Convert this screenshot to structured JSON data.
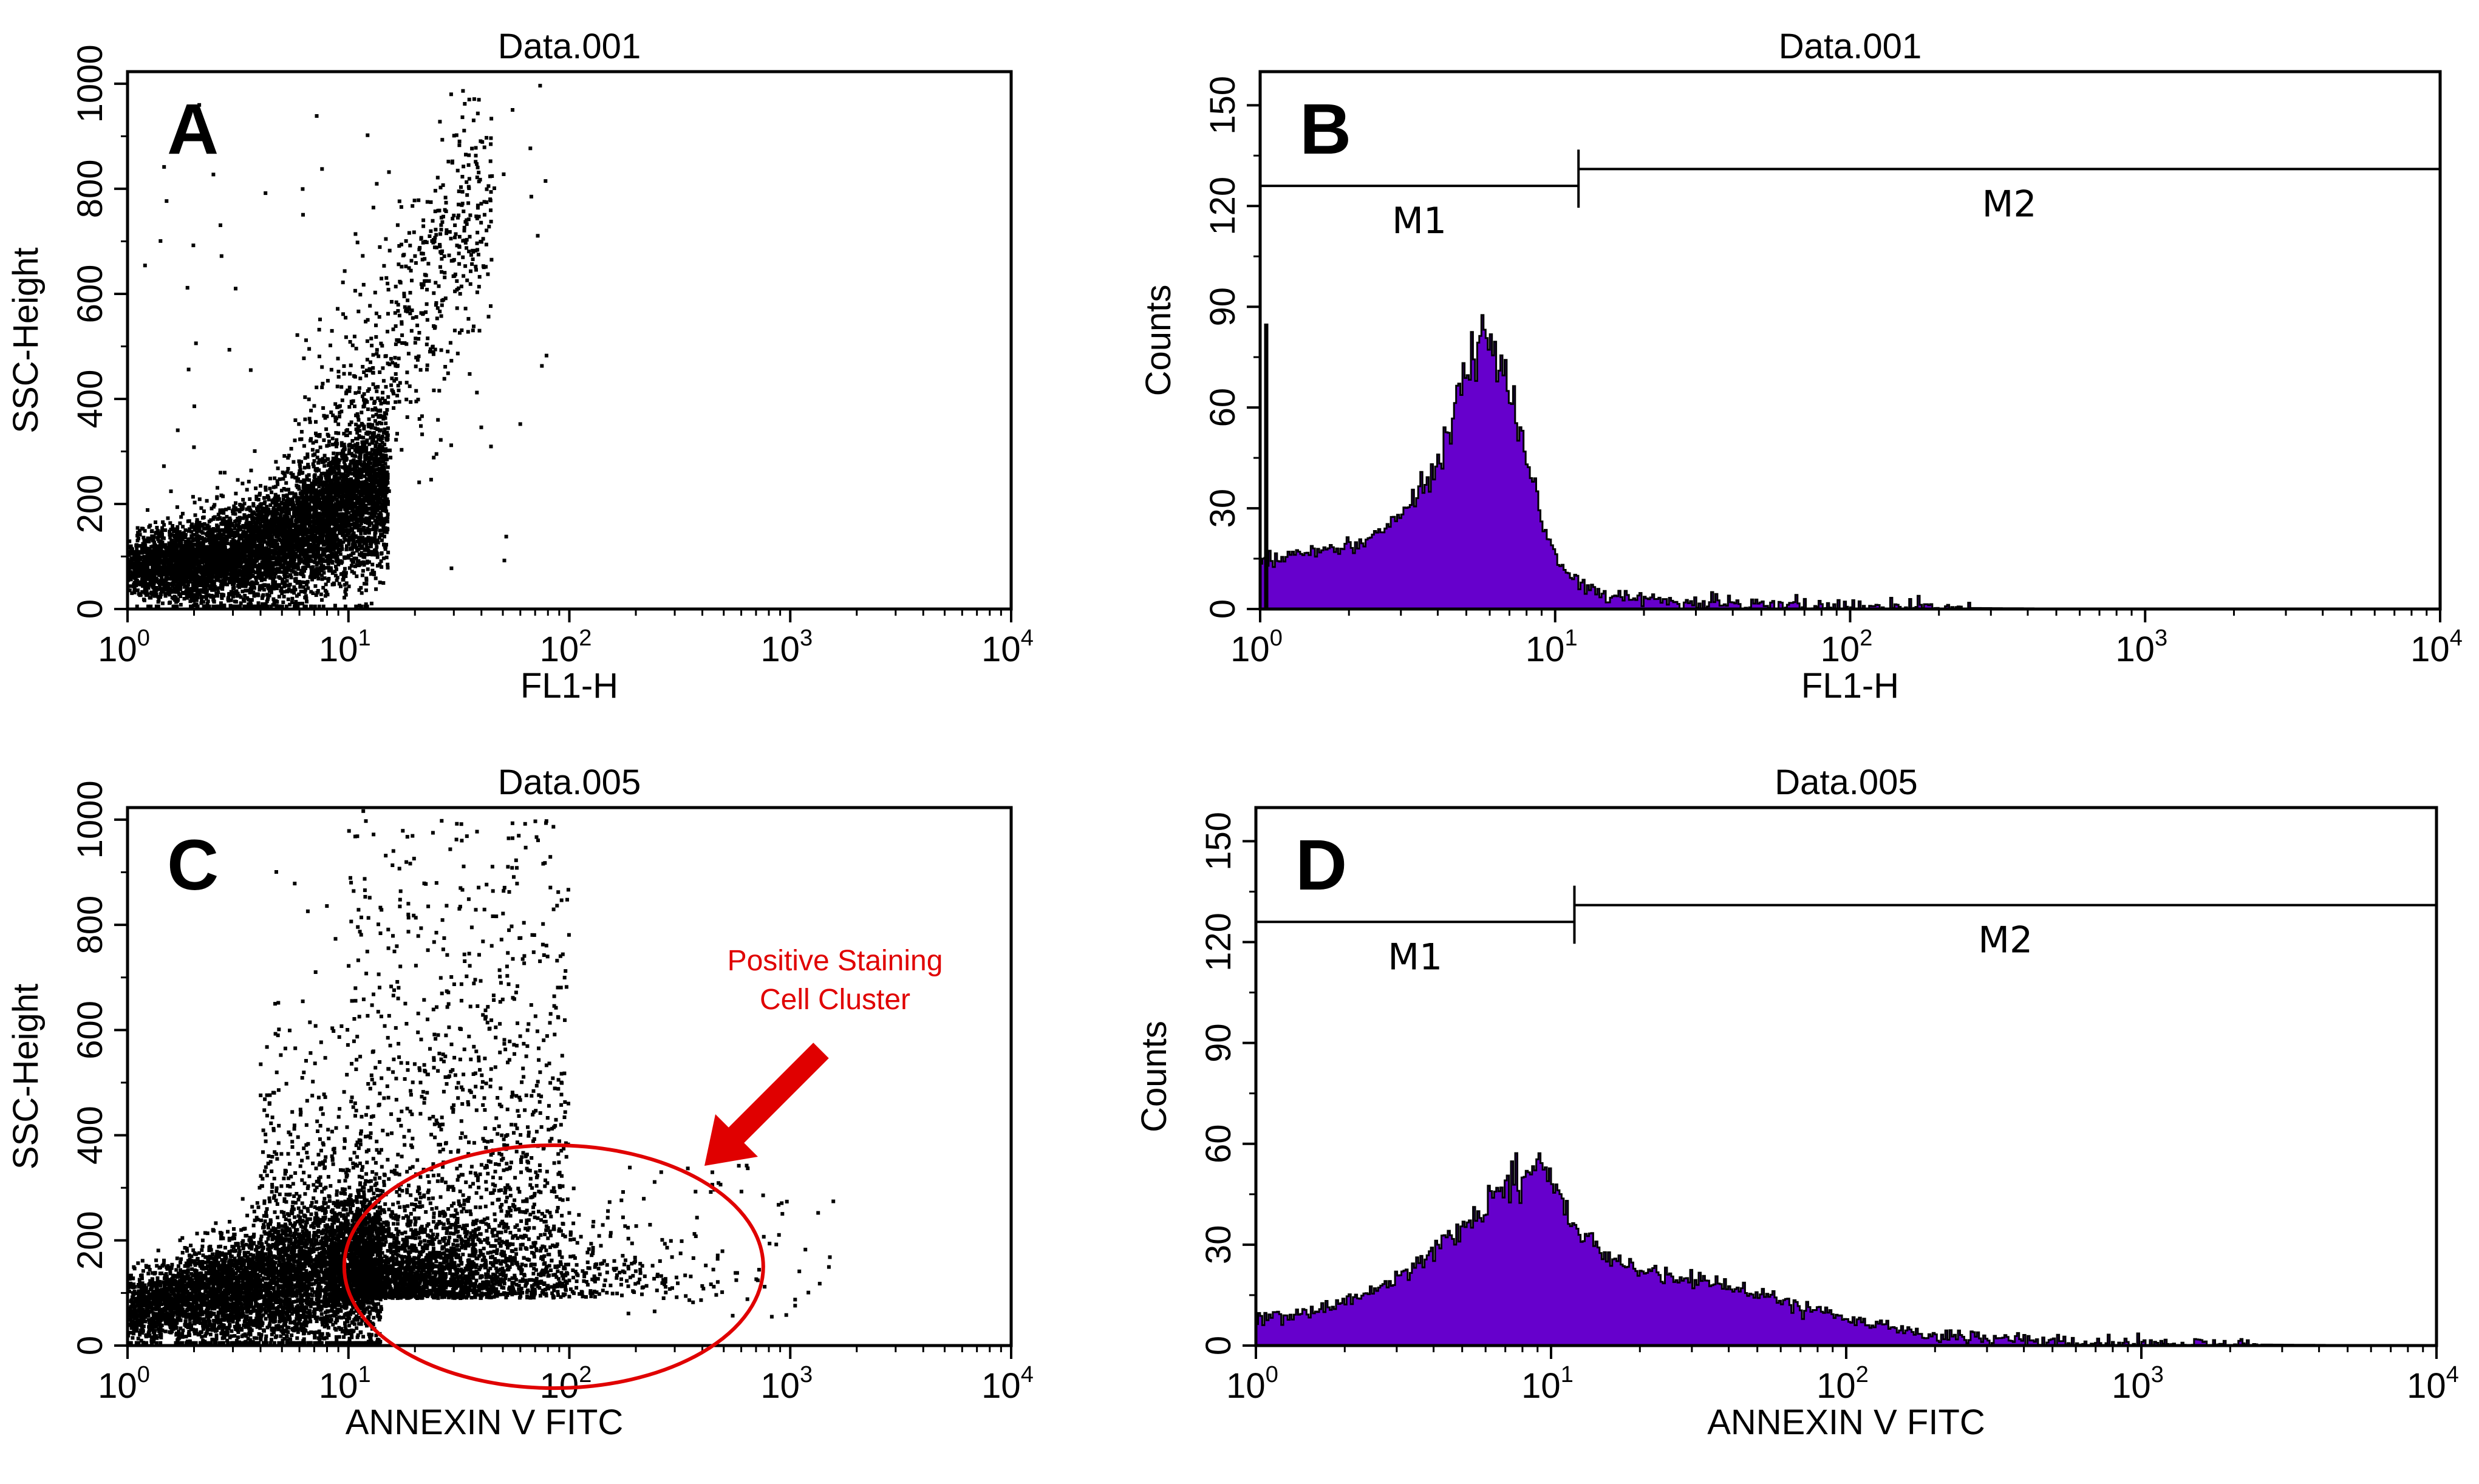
{
  "figure": {
    "colors": {
      "dot": "#000000",
      "histogram_fill": "#6600cc",
      "histogram_outline": "#000000",
      "annotation": "#e00000"
    }
  },
  "chart_data": [
    {
      "panel": "A",
      "type": "scatter",
      "title": "Data.001",
      "xlabel": "FL1-H",
      "ylabel": "SSC-Height",
      "xscale": "log",
      "xlim": [
        1,
        10000
      ],
      "ylim": [
        0,
        1023
      ],
      "x_ticks": [
        {
          "base": "10",
          "exp": "0"
        },
        {
          "base": "10",
          "exp": "1"
        },
        {
          "base": "10",
          "exp": "2"
        },
        {
          "base": "10",
          "exp": "3"
        },
        {
          "base": "10",
          "exp": "4"
        }
      ],
      "y_ticks": [
        "0",
        "200",
        "400",
        "600",
        "800",
        "1000"
      ],
      "population": {
        "description": "dense cluster near origin",
        "x_range": [
          1,
          30
        ],
        "y_center": 100,
        "outliers_to": [
          60,
          1000
        ]
      }
    },
    {
      "panel": "B",
      "type": "area",
      "title": "Data.001",
      "xlabel": "FL1-H",
      "ylabel": "Counts",
      "xscale": "log",
      "xlim": [
        1,
        10000
      ],
      "ylim": [
        0,
        160
      ],
      "x_ticks": [
        {
          "base": "10",
          "exp": "0"
        },
        {
          "base": "10",
          "exp": "1"
        },
        {
          "base": "10",
          "exp": "2"
        },
        {
          "base": "10",
          "exp": "3"
        },
        {
          "base": "10",
          "exp": "4"
        }
      ],
      "y_ticks": [
        "0",
        "30",
        "60",
        "90",
        "120",
        "150"
      ],
      "series": [
        {
          "name": "FL1-H histogram",
          "x": [
            1,
            1.5,
            2,
            2.5,
            3,
            4,
            5,
            5.8,
            7,
            8,
            10,
            12,
            15,
            20,
            30,
            50,
            100,
            1000,
            10000
          ],
          "values": [
            15,
            17,
            19,
            23,
            28,
            45,
            70,
            80,
            65,
            40,
            15,
            7,
            4,
            3,
            2,
            1,
            0.5,
            0,
            0
          ]
        }
      ],
      "markers": [
        {
          "label": "M1",
          "from": 1,
          "to": 12
        },
        {
          "label": "M2",
          "from": 12,
          "to": 10000
        }
      ]
    },
    {
      "panel": "C",
      "type": "scatter",
      "title": "Data.005",
      "xlabel": "ANNEXIN V FITC",
      "ylabel": "SSC-Height",
      "xscale": "log",
      "xlim": [
        1,
        10000
      ],
      "ylim": [
        0,
        1023
      ],
      "x_ticks": [
        {
          "base": "10",
          "exp": "0"
        },
        {
          "base": "10",
          "exp": "1"
        },
        {
          "base": "10",
          "exp": "2"
        },
        {
          "base": "10",
          "exp": "3"
        },
        {
          "base": "10",
          "exp": "4"
        }
      ],
      "y_ticks": [
        "0",
        "200",
        "400",
        "600",
        "800",
        "1000"
      ],
      "population": {
        "description": "main cluster with tail to higher fluorescence",
        "x_range": [
          1,
          1500
        ],
        "y_center": 100,
        "outliers_to": [
          300,
          1000
        ]
      },
      "annotation": {
        "text_lines": [
          "Positive Staining",
          "Cell Cluster"
        ],
        "ellipse_center": [
          85,
          150
        ]
      }
    },
    {
      "panel": "D",
      "type": "area",
      "title": "Data.005",
      "xlabel": "ANNEXIN V FITC",
      "ylabel": "Counts",
      "xscale": "log",
      "xlim": [
        1,
        10000
      ],
      "ylim": [
        0,
        160
      ],
      "x_ticks": [
        {
          "base": "10",
          "exp": "0"
        },
        {
          "base": "10",
          "exp": "1"
        },
        {
          "base": "10",
          "exp": "2"
        },
        {
          "base": "10",
          "exp": "3"
        },
        {
          "base": "10",
          "exp": "4"
        }
      ],
      "y_ticks": [
        "0",
        "30",
        "60",
        "90",
        "120",
        "150"
      ],
      "series": [
        {
          "name": "ANNEXIN V FITC histogram",
          "x": [
            1,
            1.5,
            2,
            3,
            4,
            5,
            6,
            8,
            9,
            10,
            12,
            15,
            20,
            30,
            50,
            100,
            200,
            500,
            1000,
            10000
          ],
          "values": [
            8,
            10,
            13,
            20,
            28,
            35,
            42,
            52,
            55,
            50,
            35,
            27,
            22,
            20,
            15,
            8,
            3,
            1,
            0.5,
            0
          ]
        }
      ],
      "markers": [
        {
          "label": "M1",
          "from": 1,
          "to": 12
        },
        {
          "label": "M2",
          "from": 12,
          "to": 10000
        }
      ]
    }
  ]
}
